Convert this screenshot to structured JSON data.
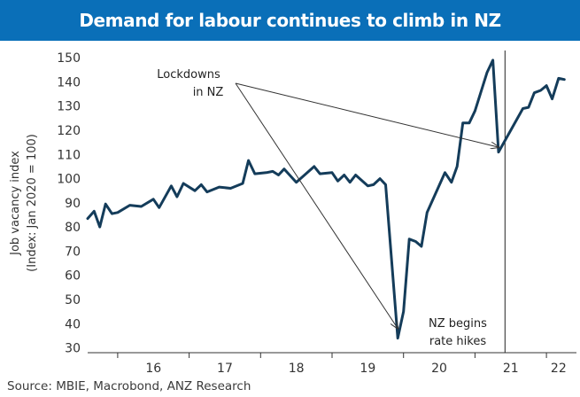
{
  "title": "Demand for labour continues to climb in NZ",
  "source": "Source: MBIE, Macrobond, ANZ Research",
  "chart_data": {
    "type": "line",
    "title": "Demand for labour continues to climb in NZ",
    "ylabel_lines": [
      "Job vacancy index",
      "(Index: Jan 2020 = 100)"
    ],
    "xlabel": "",
    "ylim": [
      28,
      153
    ],
    "yticks": [
      30,
      40,
      50,
      60,
      70,
      80,
      90,
      100,
      110,
      120,
      130,
      140,
      150
    ],
    "xlim": [
      2015.58,
      2022.42
    ],
    "xtick_labels": [
      {
        "label": "16",
        "x": 2016.5
      },
      {
        "label": "17",
        "x": 2017.5
      },
      {
        "label": "18",
        "x": 2018.5
      },
      {
        "label": "19",
        "x": 2019.5
      },
      {
        "label": "20",
        "x": 2020.5
      },
      {
        "label": "21",
        "x": 2021.5
      },
      {
        "label": "22",
        "x": 2022.17
      }
    ],
    "xtick_marks": [
      2016,
      2017,
      2018,
      2019,
      2020,
      2021,
      2022
    ],
    "grid": false,
    "color": "#143c5a",
    "series": [
      {
        "name": "",
        "points": [
          [
            2015.58,
            83.5
          ],
          [
            2015.67,
            86.5
          ],
          [
            2015.75,
            80
          ],
          [
            2015.83,
            89.5
          ],
          [
            2015.92,
            85.5
          ],
          [
            2016.0,
            86
          ],
          [
            2016.17,
            89
          ],
          [
            2016.33,
            88.5
          ],
          [
            2016.5,
            91.5
          ],
          [
            2016.58,
            88
          ],
          [
            2016.75,
            97
          ],
          [
            2016.83,
            92.5
          ],
          [
            2016.92,
            98
          ],
          [
            2017.08,
            95
          ],
          [
            2017.17,
            97.5
          ],
          [
            2017.25,
            94.5
          ],
          [
            2017.42,
            96.5
          ],
          [
            2017.58,
            96
          ],
          [
            2017.75,
            98
          ],
          [
            2017.83,
            107.5
          ],
          [
            2017.92,
            102
          ],
          [
            2018.08,
            102.5
          ],
          [
            2018.17,
            103
          ],
          [
            2018.25,
            101.5
          ],
          [
            2018.33,
            104
          ],
          [
            2018.5,
            98.5
          ],
          [
            2018.75,
            105
          ],
          [
            2018.83,
            102
          ],
          [
            2019.0,
            102.5
          ],
          [
            2019.08,
            99
          ],
          [
            2019.17,
            101.5
          ],
          [
            2019.25,
            98.5
          ],
          [
            2019.33,
            101.5
          ],
          [
            2019.5,
            97
          ],
          [
            2019.58,
            97.5
          ],
          [
            2019.67,
            100
          ],
          [
            2019.75,
            97.5
          ],
          [
            2019.92,
            34
          ],
          [
            2020.0,
            45
          ],
          [
            2020.08,
            75
          ],
          [
            2020.17,
            74
          ],
          [
            2020.25,
            72
          ],
          [
            2020.33,
            86
          ],
          [
            2020.58,
            102.5
          ],
          [
            2020.67,
            98.5
          ],
          [
            2020.75,
            105
          ],
          [
            2020.83,
            123
          ],
          [
            2020.92,
            123
          ],
          [
            2021.0,
            128
          ],
          [
            2021.17,
            144
          ],
          [
            2021.25,
            149
          ],
          [
            2021.33,
            111
          ],
          [
            2021.5,
            120
          ],
          [
            2021.67,
            129
          ],
          [
            2021.75,
            129.5
          ],
          [
            2021.83,
            135.5
          ],
          [
            2021.92,
            136.5
          ],
          [
            2022.0,
            138.5
          ],
          [
            2022.08,
            133
          ],
          [
            2022.17,
            141.5
          ],
          [
            2022.25,
            141
          ]
        ]
      }
    ],
    "vline": {
      "x": 2021.42,
      "label_lines": [
        "NZ begins",
        "rate hikes"
      ]
    },
    "annotation": {
      "label_lines": [
        "Lockdowns",
        "in NZ"
      ],
      "arrow_targets": [
        [
          2019.92,
          38
        ],
        [
          2021.33,
          113
        ]
      ]
    }
  }
}
